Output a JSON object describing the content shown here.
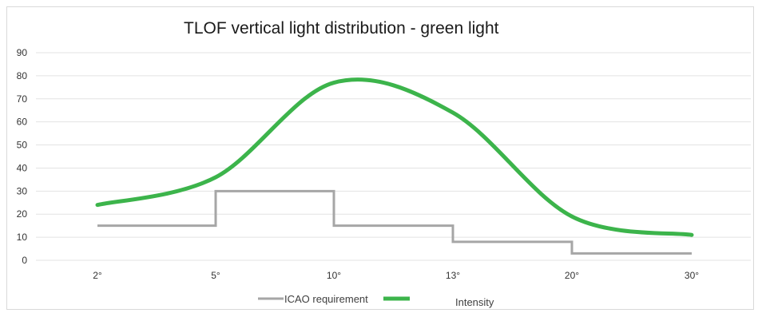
{
  "chart_data": {
    "type": "line",
    "title": "TLOF vertical light distribution - green light",
    "xlabel": "",
    "ylabel": "",
    "ylim": [
      0,
      90
    ],
    "y_ticks": [
      0,
      10,
      20,
      30,
      40,
      50,
      60,
      70,
      80,
      90
    ],
    "categories": [
      "2°",
      "5°",
      "10°",
      "13°",
      "20°",
      "30°"
    ],
    "grid": true,
    "legend_position": "bottom",
    "series": [
      {
        "name": "ICAO requirement",
        "color": "#a6a6a6",
        "style": "step",
        "values": [
          15,
          30,
          15,
          8,
          3,
          3
        ]
      },
      {
        "name": "Intensity",
        "color": "#3cb44b",
        "style": "smooth",
        "values": [
          24,
          36,
          77,
          64,
          19,
          11
        ]
      }
    ]
  }
}
